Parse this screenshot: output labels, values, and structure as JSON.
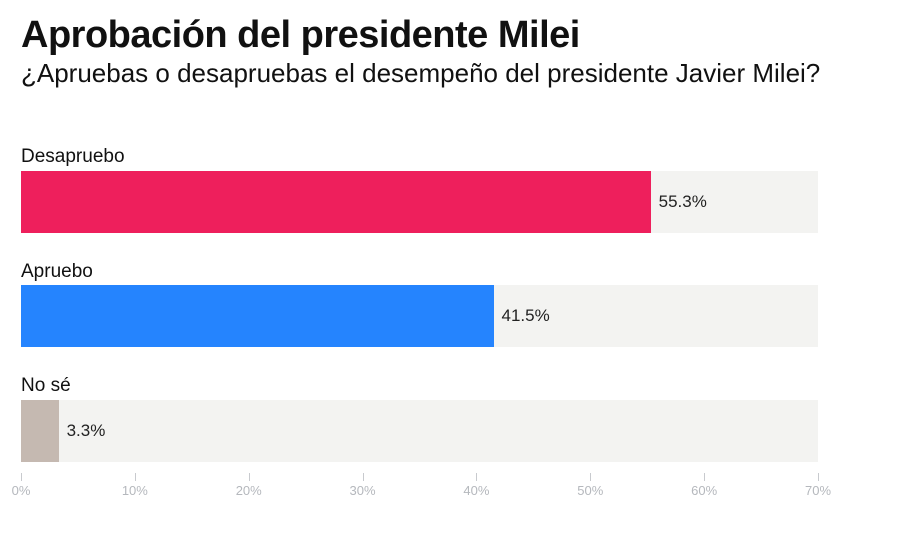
{
  "chart_data": {
    "type": "bar",
    "orientation": "horizontal",
    "title": "Aprobación del presidente Milei",
    "subtitle": "¿Apruebas o desapruebas el desempeño del presidente Javier Milei?",
    "categories": [
      "Desapruebo",
      "Apruebo",
      "No sé"
    ],
    "values": [
      55.3,
      41.5,
      3.3
    ],
    "value_labels": [
      "55.3%",
      "41.5%",
      "3.3%"
    ],
    "colors": [
      "#ee1f5c",
      "#2584fe",
      "#c5b9b1"
    ],
    "track_color": "#f3f3f1",
    "xlabel": "",
    "ylabel": "",
    "xlim": [
      0,
      70
    ],
    "x_ticks": [
      0,
      10,
      20,
      30,
      40,
      50,
      60,
      70
    ],
    "x_tick_labels": [
      "0%",
      "10%",
      "20%",
      "30%",
      "40%",
      "50%",
      "60%",
      "70%"
    ],
    "grid": false,
    "legend": "none"
  }
}
